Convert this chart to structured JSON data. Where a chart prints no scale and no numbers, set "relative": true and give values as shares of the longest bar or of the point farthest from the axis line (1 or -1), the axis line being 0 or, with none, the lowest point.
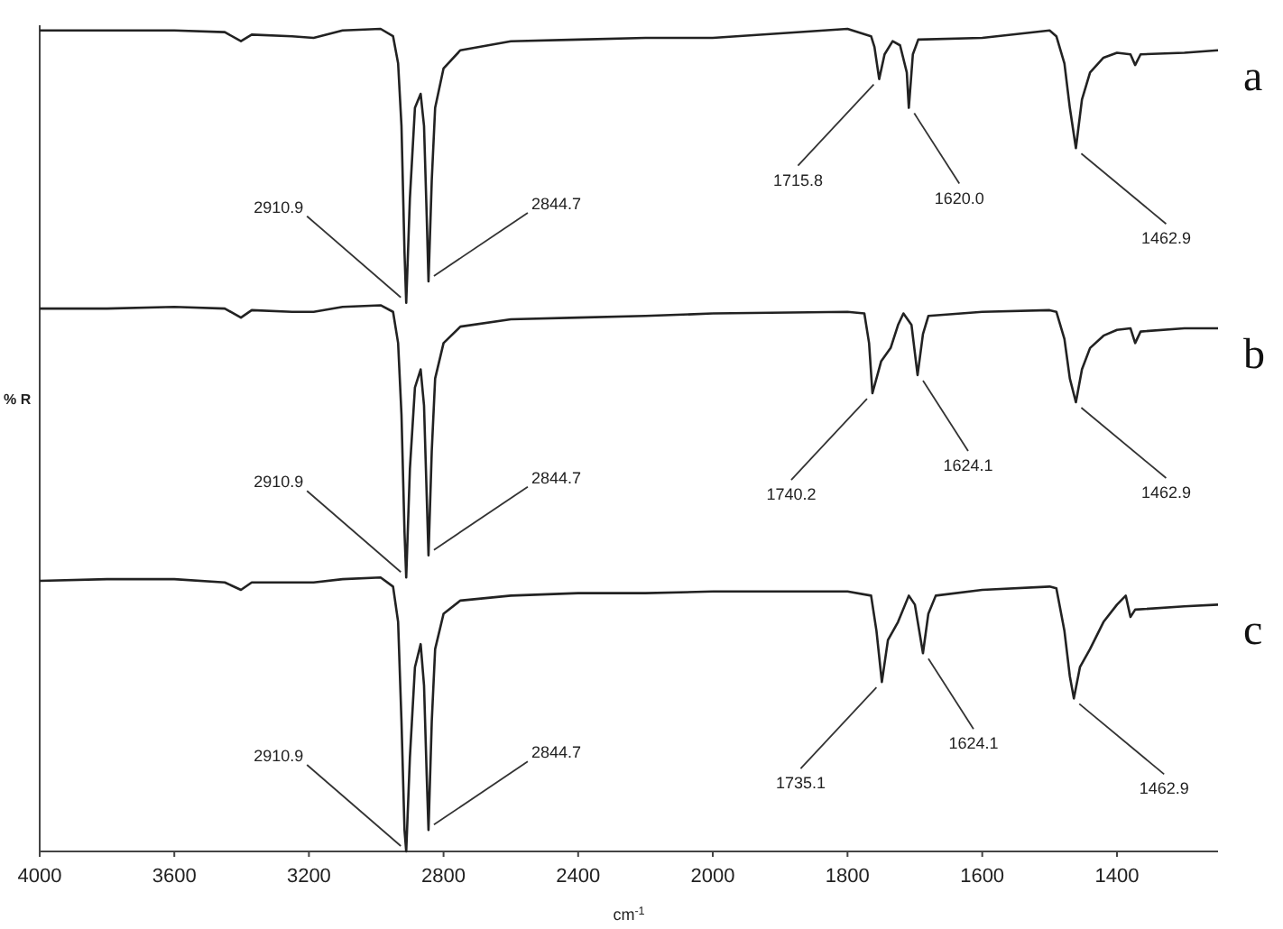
{
  "chart_data": [
    {
      "type": "line",
      "xlabel": "cm$^{-1}$",
      "ylabel": "% R",
      "relative": true,
      "xlim": [
        4000,
        2000
      ],
      "xticks": [
        4000,
        3600,
        3200,
        2800,
        2400,
        2000
      ],
      "series": [
        {
          "color": "#222222",
          "x": [
            4000,
            3800,
            3600,
            3450,
            3402,
            3370,
            3250,
            3186,
            3100,
            2987,
            2950,
            2935,
            2925,
            2916,
            2910.9,
            2900,
            2885,
            2868,
            2858,
            2850,
            2844.7,
            2835,
            2825,
            2800,
            2750,
            2600,
            2400,
            2200,
            2000
          ],
          "values": [
            0.998,
            0.998,
            0.998,
            0.996,
            0.985,
            0.993,
            0.991,
            0.989,
            0.998,
            1,
            0.991,
            0.958,
            0.882,
            0.728,
            0.667,
            0.794,
            0.904,
            0.921,
            0.882,
            0.772,
            0.693,
            0.816,
            0.904,
            0.952,
            0.974,
            0.985,
            0.987,
            0.989,
            0.989
          ]
        },
        {
          "color": "#222222",
          "x": [
            4000,
            3800,
            3600,
            3450,
            3402,
            3370,
            3250,
            3186,
            3100,
            2987,
            2950,
            2935,
            2925,
            2916,
            2910.9,
            2900,
            2885,
            2868,
            2858,
            2850,
            2844.7,
            2835,
            2825,
            2800,
            2750,
            2600,
            2400,
            2200,
            2000
          ],
          "values": [
            0.66,
            0.66,
            0.662,
            0.66,
            0.649,
            0.658,
            0.656,
            0.656,
            0.662,
            0.664,
            0.656,
            0.618,
            0.531,
            0.388,
            0.333,
            0.465,
            0.564,
            0.586,
            0.542,
            0.432,
            0.36,
            0.487,
            0.575,
            0.618,
            0.638,
            0.647,
            0.649,
            0.651,
            0.654
          ]
        },
        {
          "color": "#222222",
          "x": [
            4000,
            3800,
            3600,
            3450,
            3402,
            3370,
            3250,
            3186,
            3100,
            2987,
            2950,
            2935,
            2925,
            2916,
            2910.9,
            2900,
            2885,
            2868,
            2858,
            2850,
            2844.7,
            2835,
            2825,
            2800,
            2750,
            2600,
            2400,
            2200,
            2000
          ],
          "values": [
            0.329,
            0.331,
            0.331,
            0.327,
            0.318,
            0.327,
            0.327,
            0.327,
            0.331,
            0.333,
            0.322,
            0.279,
            0.158,
            0.026,
            0,
            0.114,
            0.224,
            0.252,
            0.202,
            0.092,
            0.026,
            0.158,
            0.246,
            0.289,
            0.305,
            0.311,
            0.314,
            0.314,
            0.316
          ]
        }
      ],
      "annotations": [
        {
          "text": "2910.9",
          "x": 2910.9,
          "y": 0.667
        },
        {
          "text": "2844.7",
          "x": 2844.7,
          "y": 0.693
        },
        {
          "text": "2910.9",
          "x": 2910.9,
          "y": 0.333
        },
        {
          "text": "2844.7",
          "x": 2844.7,
          "y": 0.36
        },
        {
          "text": "2910.9",
          "x": 2910.9,
          "y": 0
        },
        {
          "text": "2844.7",
          "x": 2844.7,
          "y": 0.026
        }
      ]
    },
    {
      "type": "line",
      "relative": true,
      "xlim": [
        2000,
        1250
      ],
      "xticks": [
        1800,
        1600,
        1400
      ],
      "series": [
        {
          "name": "a",
          "color": "#222222",
          "x": [
            2000,
            1800,
            1765,
            1760,
            1753,
            1745,
            1733,
            1722,
            1712,
            1709,
            1703,
            1695,
            1600,
            1500,
            1490,
            1478,
            1470,
            1461,
            1452,
            1440,
            1420,
            1400,
            1380,
            1373,
            1365,
            1300,
            1250
          ],
          "values": [
            0.989,
            1,
            0.991,
            0.978,
            0.939,
            0.969,
            0.985,
            0.98,
            0.947,
            0.904,
            0.969,
            0.987,
            0.989,
            0.998,
            0.991,
            0.958,
            0.904,
            0.855,
            0.914,
            0.947,
            0.965,
            0.971,
            0.969,
            0.956,
            0.969,
            0.971,
            0.974
          ]
        },
        {
          "name": "b",
          "color": "#222222",
          "x": [
            2000,
            1800,
            1775,
            1768,
            1763,
            1750,
            1736,
            1725,
            1717,
            1705,
            1696,
            1688,
            1680,
            1600,
            1500,
            1490,
            1478,
            1470,
            1461,
            1452,
            1440,
            1420,
            1400,
            1380,
            1373,
            1365,
            1300,
            1250
          ],
          "values": [
            0.654,
            0.656,
            0.654,
            0.618,
            0.557,
            0.596,
            0.612,
            0.64,
            0.654,
            0.64,
            0.579,
            0.629,
            0.651,
            0.656,
            0.658,
            0.656,
            0.623,
            0.575,
            0.546,
            0.586,
            0.612,
            0.627,
            0.634,
            0.636,
            0.618,
            0.632,
            0.636,
            0.636
          ]
        },
        {
          "name": "c",
          "color": "#222222",
          "x": [
            2000,
            1800,
            1765,
            1757,
            1749,
            1740,
            1725,
            1709,
            1700,
            1688,
            1680,
            1669,
            1600,
            1500,
            1490,
            1478,
            1470,
            1464,
            1455,
            1440,
            1420,
            1400,
            1387,
            1380,
            1373,
            1300,
            1250
          ],
          "values": [
            0.316,
            0.316,
            0.311,
            0.268,
            0.206,
            0.257,
            0.279,
            0.311,
            0.3,
            0.241,
            0.289,
            0.311,
            0.318,
            0.322,
            0.32,
            0.268,
            0.213,
            0.186,
            0.224,
            0.246,
            0.279,
            0.3,
            0.311,
            0.285,
            0.294,
            0.298,
            0.3
          ]
        }
      ],
      "annotations": [
        {
          "text": "1715.8",
          "x": 1753,
          "y": 0.939
        },
        {
          "text": "1620.0",
          "x": 1709,
          "y": 0.904
        },
        {
          "text": "1462.9",
          "x": 1461,
          "y": 0.855
        },
        {
          "text": "1740.2",
          "x": 1763,
          "y": 0.557
        },
        {
          "text": "1624.1",
          "x": 1696,
          "y": 0.579
        },
        {
          "text": "1462.9",
          "x": 1461,
          "y": 0.546
        },
        {
          "text": "1735.1",
          "x": 1749,
          "y": 0.206
        },
        {
          "text": "1624.1",
          "x": 1688,
          "y": 0.241
        },
        {
          "text": "1462.9",
          "x": 1464,
          "y": 0.186
        }
      ]
    }
  ]
}
